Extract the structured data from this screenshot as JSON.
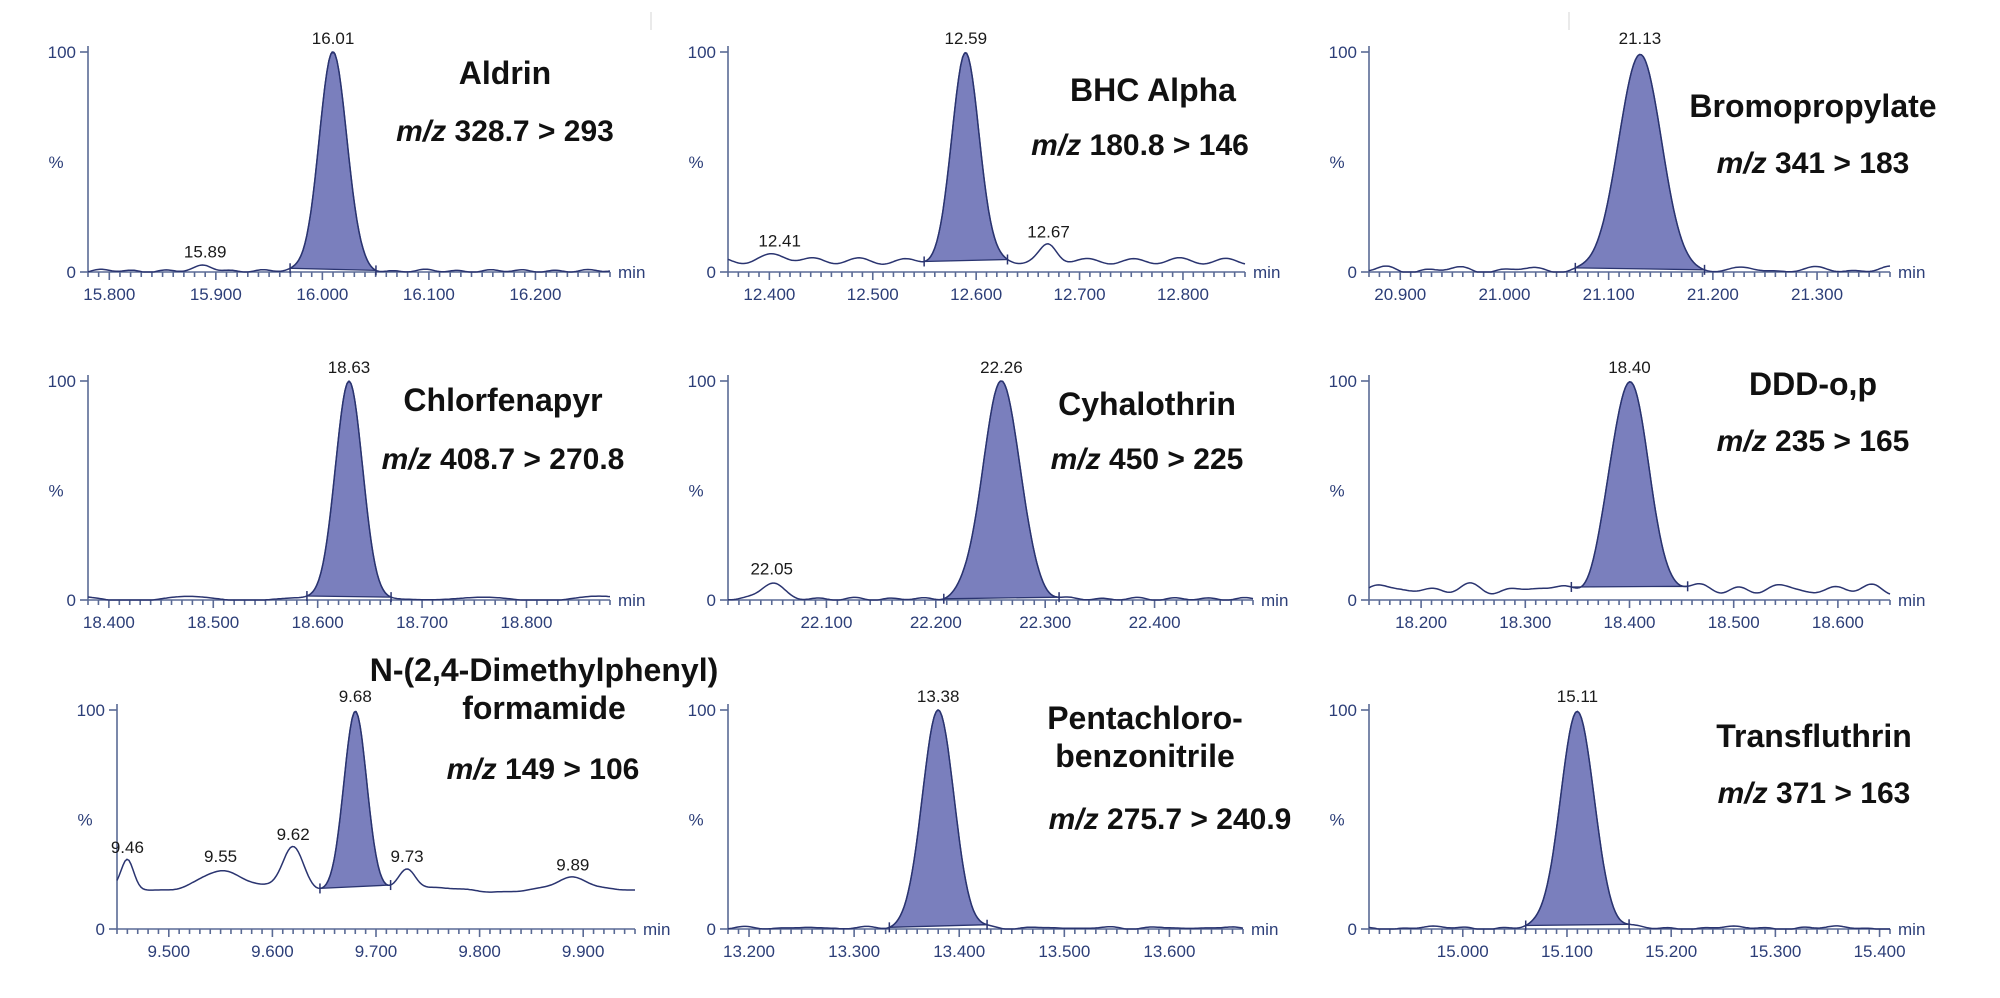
{
  "chart_data": [
    {
      "type": "line",
      "name": "Aldrin",
      "transition": "328.7 > 293",
      "x_unit": "min",
      "xlim": [
        15.78,
        16.27
      ],
      "xticks": [
        "15.800",
        "15.900",
        "16.000",
        "16.100",
        "16.200"
      ],
      "ylabel": "%",
      "yticks": [
        "0",
        "100"
      ],
      "ylim": [
        0,
        100
      ],
      "baseline": 0.5,
      "peaks": [
        {
          "rt": 16.01,
          "label": "16.01",
          "height": 100,
          "width": 0.013,
          "filled": true
        },
        {
          "rt": 15.89,
          "label": "15.89",
          "height": 3,
          "width": 0.008,
          "filled": false
        }
      ],
      "wiggle": 0.8,
      "seed": 3
    },
    {
      "type": "line",
      "name": "BHC Alpha",
      "transition": "180.8 > 146",
      "x_unit": "min",
      "xlim": [
        12.36,
        12.86
      ],
      "xticks": [
        "12.400",
        "12.500",
        "12.600",
        "12.700",
        "12.800"
      ],
      "ylabel": "%",
      "yticks": [
        "0",
        "100"
      ],
      "ylim": [
        0,
        100
      ],
      "baseline": 5,
      "peaks": [
        {
          "rt": 12.59,
          "label": "12.59",
          "height": 100,
          "width": 0.013,
          "filled": true
        },
        {
          "rt": 12.41,
          "label": "12.41",
          "height": 8,
          "width": 0.012,
          "filled": false
        },
        {
          "rt": 12.67,
          "label": "12.67",
          "height": 12,
          "width": 0.008,
          "filled": false
        }
      ],
      "wiggle": 1.6,
      "seed": 7
    },
    {
      "type": "line",
      "name": "Bromopropylate",
      "transition": "341 > 183",
      "x_unit": "min",
      "xlim": [
        20.87,
        21.37
      ],
      "xticks": [
        "20.900",
        "21.000",
        "21.100",
        "21.200",
        "21.300"
      ],
      "ylabel": "%",
      "yticks": [
        "0",
        "100"
      ],
      "ylim": [
        0,
        100
      ],
      "baseline": 1,
      "peaks": [
        {
          "rt": 21.13,
          "label": "21.13",
          "height": 100,
          "width": 0.02,
          "filled": true
        }
      ],
      "wiggle": 1.2,
      "seed": 11
    },
    {
      "type": "line",
      "name": "Chlorfenapyr",
      "transition": "408.7 > 270.8",
      "x_unit": "min",
      "xlim": [
        18.38,
        18.88
      ],
      "xticks": [
        "18.400",
        "18.500",
        "18.600",
        "18.700",
        "18.800"
      ],
      "ylabel": "%",
      "yticks": [
        "0",
        "100"
      ],
      "ylim": [
        0,
        100
      ],
      "baseline": 0.5,
      "peaks": [
        {
          "rt": 18.63,
          "label": "18.63",
          "height": 100,
          "width": 0.013,
          "filled": true
        }
      ],
      "wiggle": 0.8,
      "seed": 17
    },
    {
      "type": "line",
      "name": "Cyhalothrin",
      "transition": "450 > 225",
      "x_unit": "min",
      "xlim": [
        22.01,
        22.49
      ],
      "xticks": [
        "22.100",
        "22.200",
        "22.300",
        "22.400"
      ],
      "ylabel": "%",
      "yticks": [
        "0",
        "100"
      ],
      "ylim": [
        0,
        100
      ],
      "baseline": 0.5,
      "peaks": [
        {
          "rt": 22.26,
          "label": "22.26",
          "height": 100,
          "width": 0.017,
          "filled": true
        },
        {
          "rt": 22.05,
          "label": "22.05",
          "height": 8,
          "width": 0.01,
          "filled": false
        }
      ],
      "wiggle": 0.6,
      "seed": 23
    },
    {
      "type": "line",
      "name": "DDD-o,p",
      "transition": "235 > 165",
      "x_unit": "min",
      "xlim": [
        18.15,
        18.65
      ],
      "xticks": [
        "18.200",
        "18.300",
        "18.400",
        "18.500",
        "18.600"
      ],
      "ylabel": "%",
      "yticks": [
        "0",
        "100"
      ],
      "ylim": [
        0,
        100
      ],
      "baseline": 5,
      "peaks": [
        {
          "rt": 18.4,
          "label": "18.40",
          "height": 100,
          "width": 0.018,
          "filled": true
        }
      ],
      "wiggle": 1.4,
      "seed": 29
    },
    {
      "type": "line",
      "name": "N-(2,4-Dimethylphenyl)\nformamide",
      "transition": "149 > 106",
      "x_unit": "min",
      "xlim": [
        9.45,
        9.95
      ],
      "xticks": [
        "9.500",
        "9.600",
        "9.700",
        "9.800",
        "9.900"
      ],
      "ylabel": "%",
      "yticks": [
        "0",
        "100"
      ],
      "ylim": [
        0,
        100
      ],
      "baseline": 18,
      "peaks": [
        {
          "rt": 9.68,
          "label": "9.68",
          "height": 100,
          "width": 0.011,
          "filled": true
        },
        {
          "rt": 9.46,
          "label": "9.46",
          "height": 31,
          "width": 0.006,
          "filled": false
        },
        {
          "rt": 9.55,
          "label": "9.55",
          "height": 27,
          "width": 0.02,
          "filled": false
        },
        {
          "rt": 9.62,
          "label": "9.62",
          "height": 37,
          "width": 0.01,
          "filled": false
        },
        {
          "rt": 9.73,
          "label": "9.73",
          "height": 27,
          "width": 0.008,
          "filled": false
        },
        {
          "rt": 9.89,
          "label": "9.89",
          "height": 23,
          "width": 0.014,
          "filled": false
        }
      ],
      "wiggle": 1.2,
      "seed": 31
    },
    {
      "type": "line",
      "name": "Pentachloro-\nbenzonitrile",
      "transition": "275.7 > 240.9",
      "x_unit": "min",
      "xlim": [
        13.18,
        13.67
      ],
      "xticks": [
        "13.200",
        "13.300",
        "13.400",
        "13.500",
        "13.600"
      ],
      "ylabel": "%",
      "yticks": [
        "0",
        "100"
      ],
      "ylim": [
        0,
        100
      ],
      "baseline": 0.5,
      "peaks": [
        {
          "rt": 13.38,
          "label": "13.38",
          "height": 100,
          "width": 0.015,
          "filled": true
        }
      ],
      "wiggle": 0.5,
      "seed": 37
    },
    {
      "type": "line",
      "name": "Transfluthrin",
      "transition": "371 > 163",
      "x_unit": "min",
      "xlim": [
        14.91,
        15.41
      ],
      "xticks": [
        "15.000",
        "15.100",
        "15.200",
        "15.300",
        "15.400"
      ],
      "ylabel": "%",
      "yticks": [
        "0",
        "100"
      ],
      "ylim": [
        0,
        100
      ],
      "baseline": 0.5,
      "peaks": [
        {
          "rt": 15.11,
          "label": "15.11",
          "height": 100,
          "width": 0.016,
          "filled": true
        }
      ],
      "wiggle": 0.6,
      "seed": 41
    }
  ],
  "labels": {
    "mz_prefix": "m/z"
  }
}
